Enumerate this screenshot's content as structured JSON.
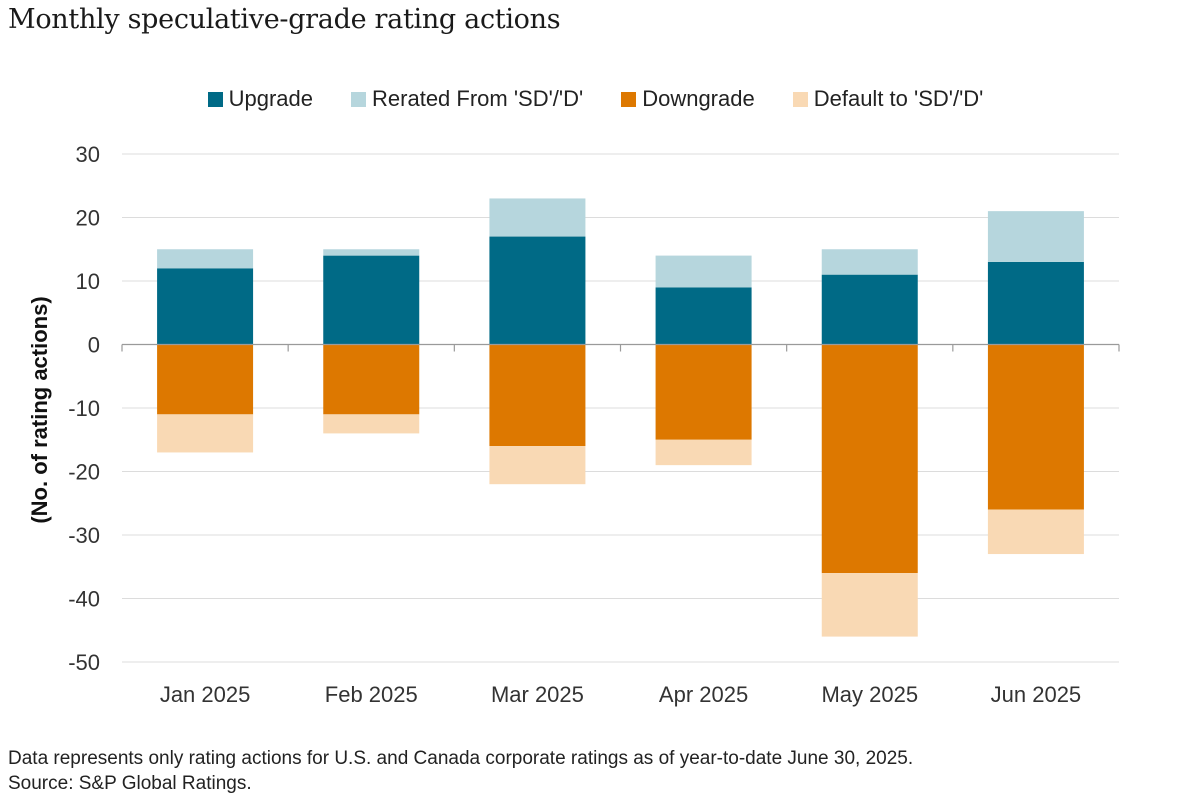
{
  "chart_data": {
    "type": "bar",
    "stacked": true,
    "title": "Monthly speculative-grade rating actions",
    "ylabel": "(No. of rating actions)",
    "xlabel": "",
    "ylim": [
      -50,
      30
    ],
    "yticks": [
      30,
      20,
      10,
      0,
      -10,
      -20,
      -30,
      -40,
      -50
    ],
    "grid": true,
    "legend_position": "top-center",
    "categories": [
      "Jan 2025",
      "Feb 2025",
      "Mar 2025",
      "Apr 2025",
      "May 2025",
      "Jun 2025"
    ],
    "series": [
      {
        "name": "Upgrade",
        "color": "#006a86",
        "values": [
          12,
          14,
          17,
          9,
          11,
          13
        ]
      },
      {
        "name": "Rerated From 'SD'/'D'",
        "color": "#b6d6dd",
        "values": [
          3,
          1,
          6,
          5,
          4,
          8
        ]
      },
      {
        "name": "Downgrade",
        "color": "#dd7800",
        "values": [
          -11,
          -11,
          -16,
          -15,
          -36,
          -26
        ]
      },
      {
        "name": "Default to 'SD'/'D'",
        "color": "#f9d9b4",
        "values": [
          -6,
          -3,
          -6,
          -4,
          -10,
          -7
        ]
      }
    ]
  },
  "footnote": {
    "line1": "Data represents only rating actions for U.S. and Canada corporate ratings as of year-to-date June 30, 2025.",
    "line2": "Source: S&P Global Ratings."
  }
}
